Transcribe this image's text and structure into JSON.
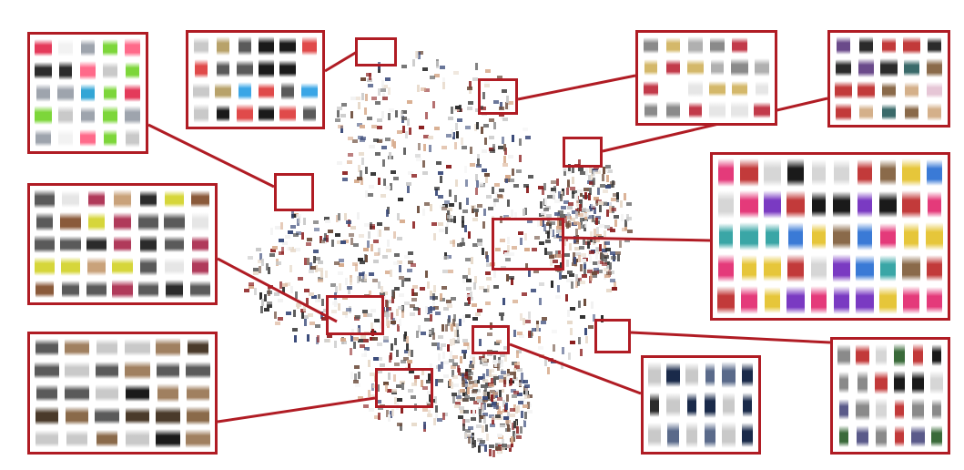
{
  "figure": {
    "title": "",
    "accent_color": "#b01c24",
    "background_color": "#ffffff"
  },
  "embedding_map": {
    "description_visible": false,
    "thumbnail_palette": [
      "#2b2b2b",
      "#6b4b3a",
      "#c9c9c9",
      "#e6d8c8",
      "#8a1d1d",
      "#3b4b7a",
      "#d6a98a",
      "#f2f2f2",
      "#5a5a5a"
    ]
  },
  "clusters": [
    {
      "id": "sneakers",
      "label": "",
      "palette": [
        "#e43a5a",
        "#f2f2f2",
        "#9ea4ad",
        "#33a6d6",
        "#7dd63a",
        "#2b2b2b",
        "#ff6a8a",
        "#c9c9c9"
      ],
      "rows": 5,
      "cols": 5
    },
    {
      "id": "watches",
      "label": "",
      "palette": [
        "#1a1a1a",
        "#c9c9c9",
        "#b8a26a",
        "#3aa6e6",
        "#e04a4a",
        "#ffffff",
        "#5a5a5a"
      ],
      "rows": 4,
      "cols": 6
    },
    {
      "id": "jewelry",
      "label": "",
      "palette": [
        "#e6e6e6",
        "#d4b86a",
        "#b0b0b0",
        "#c23a4a",
        "#ffffff",
        "#8a8a8a"
      ],
      "rows": 4,
      "cols": 6
    },
    {
      "id": "handbags",
      "label": "",
      "palette": [
        "#6a4a8a",
        "#2b2b2b",
        "#c23a3a",
        "#d4b08a",
        "#3a6a6a",
        "#e6c6d6",
        "#8a6a4a"
      ],
      "rows": 4,
      "cols": 5
    },
    {
      "id": "heels",
      "label": "",
      "palette": [
        "#2b2b2b",
        "#c9a27a",
        "#e6e6e6",
        "#8a5a3a",
        "#d6d63a",
        "#b03a5a",
        "#5a5a5a"
      ],
      "rows": 5,
      "cols": 7
    },
    {
      "id": "mixed-apparel",
      "label": "",
      "palette": [
        "#1a1a1a",
        "#e43a7a",
        "#3aa6a6",
        "#7a3ac2",
        "#d6d6d6",
        "#c23a3a",
        "#3a7ad6",
        "#e6c63a",
        "#8a6a4a"
      ],
      "rows": 5,
      "cols": 10
    },
    {
      "id": "boots",
      "label": "",
      "palette": [
        "#1a1a1a",
        "#4a3a2a",
        "#8a6a4a",
        "#c9c9c9",
        "#5a5a5a",
        "#a08060"
      ],
      "rows": 5,
      "cols": 6
    },
    {
      "id": "jeans",
      "label": "",
      "palette": [
        "#1a2a4a",
        "#2b2b2b",
        "#3a4a6a",
        "#c9c9c9",
        "#5a6a8a"
      ],
      "rows": 3,
      "cols": 6
    },
    {
      "id": "dresses",
      "label": "",
      "palette": [
        "#1a1a1a",
        "#3a6a3a",
        "#c23a3a",
        "#d6d6d6",
        "#5a5a8a",
        "#8a8a8a"
      ],
      "rows": 4,
      "cols": 6
    }
  ]
}
